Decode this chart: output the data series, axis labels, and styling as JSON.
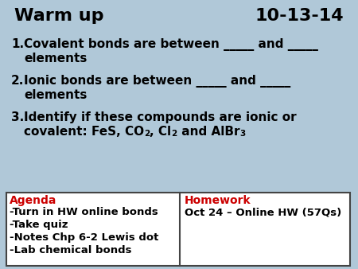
{
  "title_left": "Warm up",
  "title_right": "10-13-14",
  "bg_color": "#b0c8d8",
  "title_fontsize": 16,
  "item1_line1": "Covalent bonds are between _____ and _____",
  "item1_line2": "elements",
  "item2_line1": "Ionic bonds are between _____ and _____",
  "item2_line2": "elements",
  "item3_line1": "Identify if these compounds are ionic or",
  "item3_line2a": "covalent: FeS, CO",
  "item3_sub1": "2",
  "item3_line2b": ", Cl",
  "item3_sub2": "2",
  "item3_line2c": " and AlBr",
  "item3_sub3": "3",
  "agenda_label": "Agenda",
  "agenda_items": [
    "-Turn in HW online bonds",
    "-Take quiz",
    "-Notes Chp 6-2 Lewis dot",
    "-Lab chemical bonds"
  ],
  "hw_label": "Homework",
  "hw_items": [
    "Oct 24 – Online HW (57Qs)"
  ],
  "red_color": "#cc0000",
  "black_color": "#000000",
  "white_color": "#ffffff",
  "box_border_color": "#444444",
  "item_fontsize": 11,
  "agenda_fontsize": 10,
  "sub_fontsize": 7.5
}
